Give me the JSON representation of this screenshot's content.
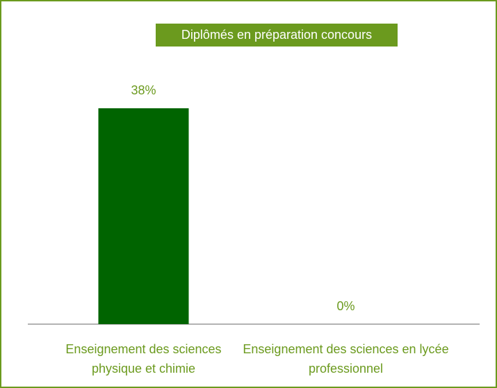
{
  "chart_data": {
    "type": "bar",
    "title": "Diplômés en préparation concours",
    "categories": [
      "Enseignement des sciences physique et chimie",
      "Enseignement des sciences en lycée professionnel"
    ],
    "values": [
      38,
      0
    ],
    "value_labels": [
      "38%",
      "0%"
    ],
    "color": "#006400"
  }
}
